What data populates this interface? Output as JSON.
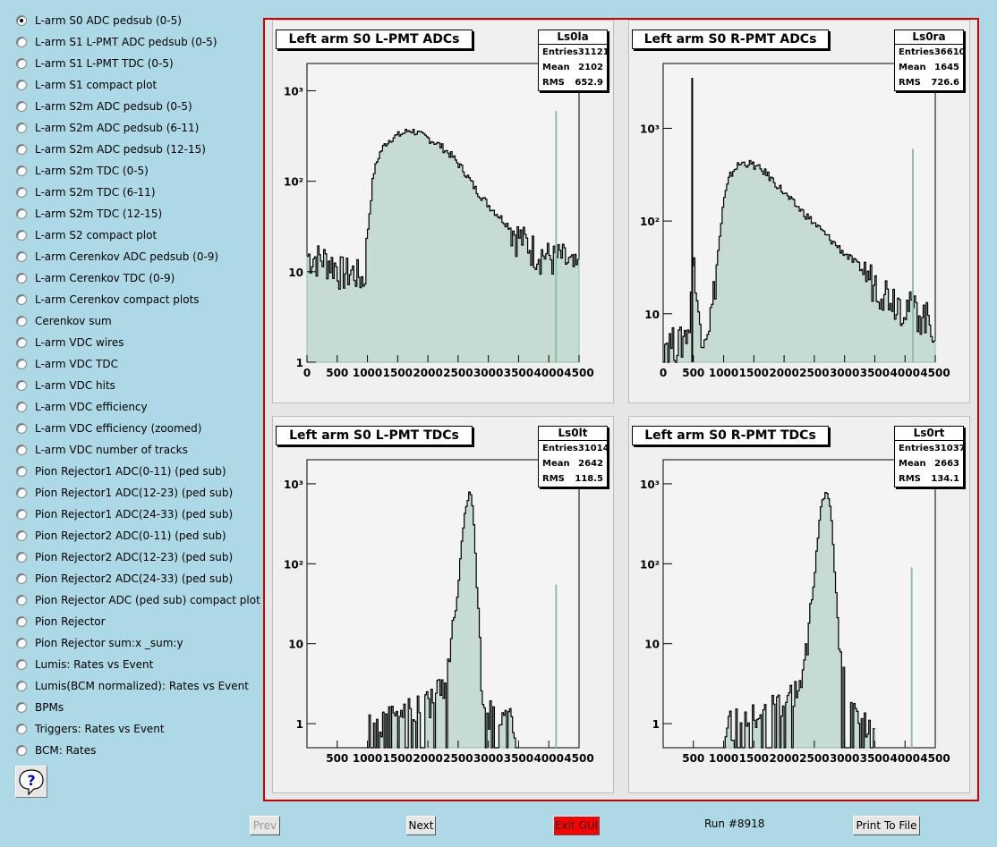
{
  "menu": {
    "items": [
      "L-arm S0 ADC pedsub (0-5)",
      "L-arm S1 L-PMT ADC pedsub (0-5)",
      "L-arm S1 L-PMT TDC (0-5)",
      "L-arm S1 compact plot",
      "L-arm S2m ADC pedsub (0-5)",
      "L-arm S2m ADC pedsub (6-11)",
      "L-arm S2m ADC pedsub (12-15)",
      "L-arm S2m TDC (0-5)",
      "L-arm S2m TDC (6-11)",
      "L-arm S2m TDC (12-15)",
      "L-arm S2 compact plot",
      "L-arm Cerenkov ADC pedsub (0-9)",
      "L-arm Cerenkov TDC (0-9)",
      "L-arm Cerenkov compact plots",
      "Cerenkov sum",
      "L-arm VDC wires",
      "L-arm VDC TDC",
      "L-arm VDC hits",
      "L-arm VDC efficiency",
      "L-arm VDC efficiency (zoomed)",
      "L-arm VDC number of tracks",
      "Pion Rejector1 ADC(0-11) (ped sub)",
      "Pion Rejector1 ADC(12-23) (ped sub)",
      "Pion Rejector1 ADC(24-33) (ped sub)",
      "Pion Rejector2 ADC(0-11) (ped sub)",
      "Pion Rejector2 ADC(12-23) (ped sub)",
      "Pion Rejector2 ADC(24-33) (ped sub)",
      "Pion Rejector ADC (ped sub) compact plot",
      "Pion Rejector",
      "Pion Rejector sum:x _sum:y",
      "Lumis: Rates vs Event",
      "Lumis(BCM normalized): Rates vs Event",
      "BPMs",
      "Triggers: Rates vs Event",
      "BCM: Rates"
    ],
    "selected_index": 0
  },
  "help_icon": "question-mark-help-icon",
  "colors": {
    "background": "#add8e6",
    "frame_border": "#cc0000",
    "fill_hist": "#8fbfa8",
    "line_hist": "#000000",
    "exit_button": "#ff0000"
  },
  "pads": [
    {
      "title": "Left arm S0 L-PMT ADCs",
      "stats": {
        "name": "Ls0la",
        "entries_label": "Entries",
        "entries": "31121",
        "mean_label": "Mean",
        "mean": "2102",
        "rms_label": "RMS",
        "rms": "652.9"
      }
    },
    {
      "title": "Left arm S0 R-PMT ADCs",
      "stats": {
        "name": "Ls0ra",
        "entries_label": "Entries",
        "entries": "36610",
        "mean_label": "Mean",
        "mean": "1645",
        "rms_label": "RMS",
        "rms": "726.6"
      }
    },
    {
      "title": "Left arm S0 L-PMT TDCs",
      "stats": {
        "name": "Ls0lt",
        "entries_label": "Entries",
        "entries": "31014",
        "mean_label": "Mean",
        "mean": "2642",
        "rms_label": "RMS",
        "rms": "118.5"
      }
    },
    {
      "title": "Left arm S0 R-PMT TDCs",
      "stats": {
        "name": "Ls0rt",
        "entries_label": "Entries",
        "entries": "31037",
        "mean_label": "Mean",
        "mean": "2663",
        "rms_label": "RMS",
        "rms": "134.1"
      }
    }
  ],
  "chart_data": [
    {
      "type": "area",
      "title": "Left arm S0 L-PMT ADCs",
      "xlim": [
        0,
        4500
      ],
      "ylim": [
        1,
        2000
      ],
      "log_y": true,
      "x_ticks": [
        "0",
        "500",
        "1000",
        "1500",
        "2000",
        "2500",
        "3000",
        "3500",
        "4000",
        "4500"
      ],
      "y_ticks": [
        "1",
        "10",
        "10²",
        "10³"
      ],
      "series": [
        {
          "points": [
            [
              0,
              15
            ],
            [
              300,
              14
            ],
            [
              450,
              12
            ],
            [
              600,
              10
            ],
            [
              800,
              10
            ],
            [
              950,
              8
            ],
            [
              1000,
              25
            ],
            [
              1100,
              120
            ],
            [
              1200,
              200
            ],
            [
              1300,
              260
            ],
            [
              1400,
              300
            ],
            [
              1500,
              320
            ],
            [
              1600,
              340
            ],
            [
              1700,
              370
            ],
            [
              1800,
              350
            ],
            [
              1900,
              320
            ],
            [
              2000,
              300
            ],
            [
              2200,
              250
            ],
            [
              2400,
              190
            ],
            [
              2600,
              130
            ],
            [
              2800,
              80
            ],
            [
              3000,
              55
            ],
            [
              3200,
              40
            ],
            [
              3500,
              25
            ],
            [
              3800,
              17
            ],
            [
              4100,
              14
            ],
            [
              4200,
              15
            ],
            [
              4400,
              11
            ],
            [
              4600,
              10
            ]
          ]
        }
      ],
      "spikes": [
        [
          4120,
          600
        ]
      ]
    },
    {
      "type": "area",
      "title": "Left arm S0 R-PMT ADCs",
      "xlim": [
        0,
        4500
      ],
      "ylim": [
        3,
        5000
      ],
      "log_y": true,
      "x_ticks": [
        "0",
        "500",
        "1000",
        "1500",
        "2000",
        "2500",
        "3000",
        "3500",
        "4000",
        "4500"
      ],
      "y_ticks": [
        "10",
        "10²",
        "10³"
      ],
      "series": [
        {
          "points": [
            [
              0,
              5
            ],
            [
              300,
              5
            ],
            [
              450,
              8
            ],
            [
              500,
              60
            ],
            [
              550,
              12
            ],
            [
              620,
              8
            ],
            [
              700,
              7
            ],
            [
              800,
              10
            ],
            [
              900,
              40
            ],
            [
              1000,
              160
            ],
            [
              1100,
              300
            ],
            [
              1200,
              380
            ],
            [
              1300,
              420
            ],
            [
              1400,
              420
            ],
            [
              1500,
              400
            ],
            [
              1700,
              330
            ],
            [
              1900,
              240
            ],
            [
              2100,
              170
            ],
            [
              2400,
              110
            ],
            [
              2700,
              70
            ],
            [
              3000,
              45
            ],
            [
              3300,
              30
            ],
            [
              3600,
              20
            ],
            [
              3900,
              14
            ],
            [
              4200,
              11
            ],
            [
              4400,
              9
            ],
            [
              4500,
              7
            ]
          ]
        }
      ],
      "spikes": [
        [
          480,
          3500
        ],
        [
          4130,
          600
        ]
      ]
    },
    {
      "type": "area",
      "title": "Left arm S0 L-PMT TDCs",
      "xlim": [
        0,
        4500
      ],
      "ylim": [
        0.5,
        2000
      ],
      "log_y": true,
      "x_ticks": [
        "500",
        "1000",
        "1500",
        "2000",
        "2500",
        "3000",
        "3500",
        "4000",
        "4500"
      ],
      "y_ticks": [
        "1",
        "10",
        "10²",
        "10³"
      ],
      "series": [
        {
          "points": [
            [
              1000,
              1
            ],
            [
              1500,
              1.2
            ],
            [
              2000,
              2
            ],
            [
              2300,
              3
            ],
            [
              2500,
              50
            ],
            [
              2600,
              400
            ],
            [
              2700,
              900
            ],
            [
              2750,
              500
            ],
            [
              2800,
              80
            ],
            [
              2900,
              3
            ],
            [
              3000,
              1.5
            ],
            [
              3500,
              1
            ]
          ]
        }
      ],
      "spikes": [
        [
          4120,
          55
        ]
      ]
    },
    {
      "type": "area",
      "title": "Left arm S0 R-PMT TDCs",
      "xlim": [
        0,
        4500
      ],
      "ylim": [
        0.5,
        2000
      ],
      "log_y": true,
      "x_ticks": [
        "500",
        "1000",
        "1500",
        "2000",
        "2500",
        "3000",
        "3500",
        "4000",
        "4500"
      ],
      "y_ticks": [
        "1",
        "10",
        "10²",
        "10³"
      ],
      "series": [
        {
          "points": [
            [
              1000,
              1
            ],
            [
              1500,
              1.2
            ],
            [
              2000,
              2
            ],
            [
              2300,
              3
            ],
            [
              2500,
              60
            ],
            [
              2600,
              500
            ],
            [
              2700,
              900
            ],
            [
              2780,
              400
            ],
            [
              2850,
              60
            ],
            [
              2950,
              5
            ],
            [
              3100,
              1.5
            ],
            [
              3500,
              1
            ]
          ]
        }
      ],
      "spikes": [
        [
          4110,
          90
        ]
      ]
    }
  ],
  "footer": {
    "prev": "Prev",
    "next": "Next",
    "exit": "Exit GUI",
    "run": "Run #8918",
    "print": "Print To File"
  }
}
